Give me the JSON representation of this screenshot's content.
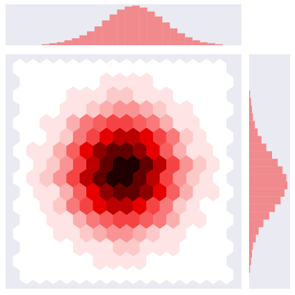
{
  "chart_data": {
    "type": "hexbin",
    "counts": [
      [
        0,
        0,
        0,
        0,
        0,
        0,
        0,
        0,
        0,
        0,
        0,
        0,
        0,
        0,
        0,
        0
      ],
      [
        0,
        0,
        0,
        0,
        0,
        0,
        1,
        1,
        1,
        1,
        0,
        0,
        0,
        0,
        0,
        0
      ],
      [
        0,
        0,
        0,
        0,
        1,
        1,
        1,
        2,
        2,
        1,
        1,
        1,
        0,
        0,
        0,
        0
      ],
      [
        0,
        0,
        0,
        1,
        1,
        2,
        3,
        4,
        4,
        3,
        2,
        1,
        1,
        0,
        0,
        0
      ],
      [
        0,
        0,
        1,
        1,
        3,
        5,
        6,
        7,
        7,
        6,
        5,
        3,
        1,
        1,
        0,
        0
      ],
      [
        0,
        0,
        1,
        2,
        5,
        7,
        10,
        12,
        12,
        10,
        7,
        5,
        2,
        1,
        0,
        0
      ],
      [
        0,
        1,
        1,
        3,
        6,
        10,
        14,
        16,
        16,
        14,
        10,
        6,
        3,
        1,
        1,
        0
      ],
      [
        0,
        1,
        2,
        4,
        7,
        12,
        16,
        19,
        19,
        16,
        12,
        7,
        4,
        2,
        1,
        0
      ],
      [
        0,
        1,
        2,
        4,
        7,
        12,
        16,
        19,
        19,
        16,
        12,
        7,
        4,
        2,
        1,
        0
      ],
      [
        0,
        1,
        1,
        3,
        6,
        10,
        14,
        16,
        16,
        14,
        10,
        6,
        3,
        1,
        1,
        0
      ],
      [
        0,
        0,
        1,
        2,
        5,
        7,
        10,
        12,
        12,
        10,
        7,
        5,
        2,
        1,
        0,
        0
      ],
      [
        0,
        0,
        1,
        1,
        3,
        5,
        6,
        7,
        7,
        6,
        5,
        3,
        1,
        1,
        0,
        0
      ],
      [
        0,
        0,
        0,
        1,
        1,
        2,
        3,
        4,
        4,
        3,
        2,
        1,
        1,
        0,
        0,
        0
      ],
      [
        0,
        0,
        0,
        0,
        1,
        1,
        1,
        2,
        2,
        1,
        1,
        1,
        0,
        0,
        0,
        0
      ],
      [
        0,
        0,
        0,
        0,
        0,
        0,
        1,
        1,
        1,
        1,
        0,
        0,
        0,
        0,
        0,
        0
      ],
      [
        0,
        0,
        0,
        0,
        0,
        0,
        0,
        0,
        0,
        0,
        0,
        0,
        0,
        0,
        0,
        0
      ]
    ],
    "colors": [
      "#ffffff",
      "#f20000",
      "#200000"
    ],
    "x_marginal": {
      "values": [
        1,
        2,
        3,
        5,
        7,
        10,
        14,
        19,
        25,
        31,
        36,
        39,
        40,
        38,
        34,
        29,
        23,
        17,
        12,
        8,
        5,
        3,
        2,
        1
      ],
      "color": "#f08a8d"
    },
    "y_marginal": {
      "values": [
        1,
        2,
        3,
        4,
        6,
        9,
        13,
        18,
        24,
        30,
        35,
        39,
        40,
        37,
        33,
        27,
        21,
        15,
        10,
        7,
        4,
        3,
        2,
        1
      ],
      "color": "#f08a8d"
    }
  }
}
